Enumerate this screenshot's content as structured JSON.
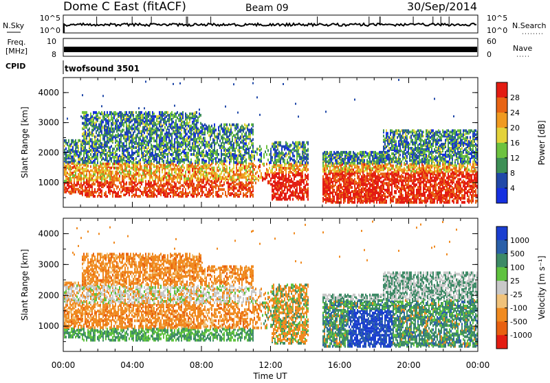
{
  "header": {
    "station": "Dome C East (fitACF)",
    "beam": "Beam 09",
    "date": "30/Sep/2014"
  },
  "top_panels": {
    "nsky_label": "N.Sky",
    "nsky_ticks": [
      "10^5",
      "10^0"
    ],
    "nsearch_label": "N.Search",
    "nsearch_ticks": [
      "10^5",
      "10^0"
    ],
    "freq_label_1": "Freq.",
    "freq_label_2": "[MHz]",
    "freq_ticks": [
      "10",
      "8"
    ],
    "nave_label": "Nave",
    "nave_ticks": [
      "60",
      "0"
    ],
    "cpid_label": "CPID",
    "cpid_value": "twofsound 3501"
  },
  "chart_data": [
    {
      "type": "heatmap",
      "panel": "power",
      "ylabel": "Slant Range [km]",
      "xlabel": "",
      "x_ticks": [
        "00:00",
        "04:00",
        "08:00",
        "12:00",
        "16:00",
        "20:00",
        "00:00"
      ],
      "x_range_hours": [
        0,
        24
      ],
      "y_ticks": [
        1000,
        2000,
        3000,
        4000
      ],
      "ylim": [
        180,
        4500
      ],
      "colorbar": {
        "label": "Power [dB]",
        "ticks": [
          4,
          8,
          12,
          16,
          20,
          24,
          28
        ],
        "colors": [
          "#1530e0",
          "#2048a8",
          "#3d8f55",
          "#6dc23f",
          "#e3d23a",
          "#f09a20",
          "#e86414",
          "#e31c12"
        ]
      },
      "data_gaps_hours": [
        [
          14.2,
          15.0
        ]
      ]
    },
    {
      "type": "heatmap",
      "panel": "velocity",
      "ylabel": "Slant Range [km]",
      "xlabel": "Time UT",
      "x_ticks": [
        "00:00",
        "04:00",
        "08:00",
        "12:00",
        "16:00",
        "20:00",
        "00:00"
      ],
      "x_range_hours": [
        0,
        24
      ],
      "y_ticks": [
        1000,
        2000,
        3000,
        4000
      ],
      "ylim": [
        180,
        4500
      ],
      "colorbar": {
        "label": "Velocity [m s⁻¹]",
        "ticks": [
          "1000",
          "500",
          "100",
          "25",
          "-25",
          "-100",
          "-500",
          "-1000"
        ],
        "colors": [
          "#1a3ed0",
          "#2a5fa8",
          "#3d8a66",
          "#5fc23f",
          "#c8c8c8",
          "#f0c27a",
          "#f08a20",
          "#e86010",
          "#e31c12"
        ]
      },
      "data_gaps_hours": [
        [
          14.2,
          15.0
        ]
      ]
    }
  ],
  "colors": {
    "frame": "#000000",
    "background": "#ffffff"
  }
}
